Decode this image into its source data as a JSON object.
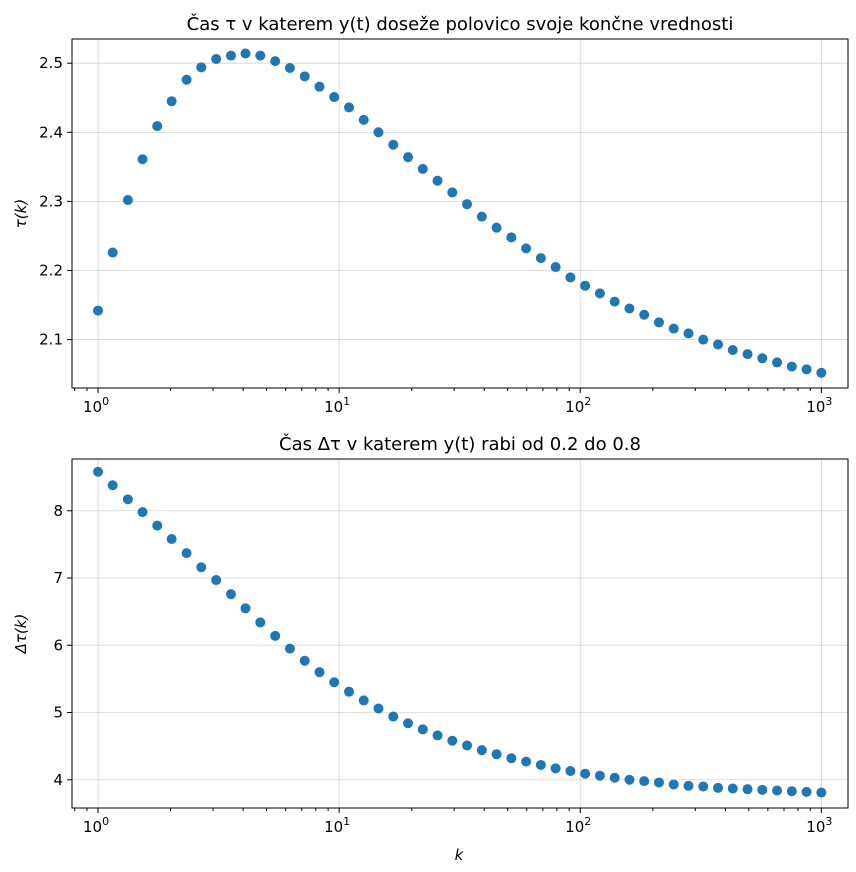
{
  "chart_data": [
    {
      "type": "scatter",
      "title": "Čas τ v katerem y(t) doseže polovico svoje končne vrednosti",
      "xlabel": "",
      "ylabel": "τ(k)",
      "xscale": "log",
      "xlim": [
        0.78,
        1290
      ],
      "ylim": [
        2.03,
        2.535
      ],
      "grid": true,
      "x_ticks": [
        {
          "base": "10",
          "exp": "0"
        },
        {
          "base": "10",
          "exp": "1"
        },
        {
          "base": "10",
          "exp": "2"
        },
        {
          "base": "10",
          "exp": "3"
        }
      ],
      "y_ticks": [
        "2.1",
        "2.2",
        "2.3",
        "2.4",
        "2.5"
      ],
      "color": "#1f77b4",
      "x": [
        1.0,
        1.15,
        1.33,
        1.53,
        1.76,
        2.02,
        2.33,
        2.68,
        3.09,
        3.56,
        4.09,
        4.71,
        5.43,
        6.25,
        7.2,
        8.29,
        9.54,
        10.99,
        12.65,
        14.56,
        16.77,
        19.31,
        22.23,
        25.6,
        29.47,
        33.93,
        39.07,
        44.98,
        51.79,
        59.64,
        68.66,
        79.06,
        91.03,
        104.81,
        120.68,
        138.95,
        159.99,
        184.21,
        212.1,
        244.21,
        281.19,
        323.75,
        372.76,
        429.19,
        494.17,
        568.99,
        655.13,
        754.31,
        868.51,
        1000.0
      ],
      "values": [
        2.142,
        2.226,
        2.302,
        2.361,
        2.409,
        2.445,
        2.476,
        2.494,
        2.506,
        2.511,
        2.514,
        2.511,
        2.503,
        2.493,
        2.481,
        2.466,
        2.451,
        2.436,
        2.418,
        2.4,
        2.382,
        2.364,
        2.347,
        2.33,
        2.313,
        2.296,
        2.278,
        2.262,
        2.248,
        2.232,
        2.218,
        2.205,
        2.19,
        2.178,
        2.167,
        2.155,
        2.145,
        2.136,
        2.125,
        2.116,
        2.109,
        2.1,
        2.093,
        2.085,
        2.079,
        2.073,
        2.067,
        2.061,
        2.057,
        2.052
      ]
    },
    {
      "type": "scatter",
      "title": "Čas Δτ v katerem y(t) rabi od 0.2 do 0.8",
      "xlabel": "k",
      "ylabel": "Δτ(k)",
      "xscale": "log",
      "xlim": [
        0.78,
        1290
      ],
      "ylim": [
        3.58,
        8.77
      ],
      "grid": true,
      "x_ticks": [
        {
          "base": "10",
          "exp": "0"
        },
        {
          "base": "10",
          "exp": "1"
        },
        {
          "base": "10",
          "exp": "2"
        },
        {
          "base": "10",
          "exp": "3"
        }
      ],
      "y_ticks": [
        "4",
        "5",
        "6",
        "7",
        "8"
      ],
      "color": "#1f77b4",
      "x": [
        1.0,
        1.15,
        1.33,
        1.53,
        1.76,
        2.02,
        2.33,
        2.68,
        3.09,
        3.56,
        4.09,
        4.71,
        5.43,
        6.25,
        7.2,
        8.29,
        9.54,
        10.99,
        12.65,
        14.56,
        16.77,
        19.31,
        22.23,
        25.6,
        29.47,
        33.93,
        39.07,
        44.98,
        51.79,
        59.64,
        68.66,
        79.06,
        91.03,
        104.81,
        120.68,
        138.95,
        159.99,
        184.21,
        212.1,
        244.21,
        281.19,
        323.75,
        372.76,
        429.19,
        494.17,
        568.99,
        655.13,
        754.31,
        868.51,
        1000.0
      ],
      "values": [
        8.58,
        8.38,
        8.17,
        7.98,
        7.78,
        7.58,
        7.37,
        7.16,
        6.97,
        6.76,
        6.55,
        6.34,
        6.14,
        5.95,
        5.77,
        5.6,
        5.45,
        5.31,
        5.18,
        5.06,
        4.94,
        4.84,
        4.75,
        4.66,
        4.58,
        4.51,
        4.44,
        4.38,
        4.32,
        4.27,
        4.22,
        4.17,
        4.13,
        4.09,
        4.06,
        4.03,
        4.0,
        3.98,
        3.96,
        3.93,
        3.91,
        3.9,
        3.88,
        3.87,
        3.86,
        3.85,
        3.84,
        3.83,
        3.82,
        3.81
      ]
    }
  ]
}
